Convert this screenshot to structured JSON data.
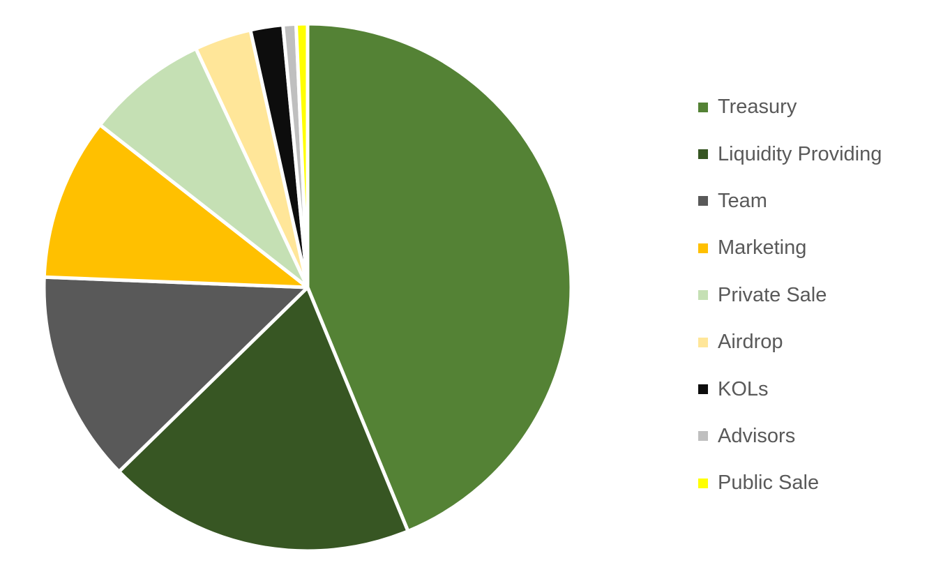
{
  "chart_data": {
    "type": "pie",
    "title": "",
    "legend_position": "right",
    "start_angle": "12 o'clock",
    "direction": "clockwise",
    "series": [
      {
        "values": [
          44,
          19,
          13,
          10,
          7.5,
          3.5,
          2,
          0.8,
          0.7
        ]
      }
    ],
    "categories": [
      "Treasury",
      "Liquidity Providing",
      "Team",
      "Marketing",
      "Private Sale",
      "Airdrop",
      "KOLs",
      "Advisors",
      "Public Sale"
    ],
    "colors": [
      "#548235",
      "#375623",
      "#595959",
      "#FFC000",
      "#C5E0B4",
      "#FFE699",
      "#0D0D0D",
      "#BFBFBF",
      "#FFFF00"
    ],
    "slice_border_color": "#FFFFFF"
  }
}
